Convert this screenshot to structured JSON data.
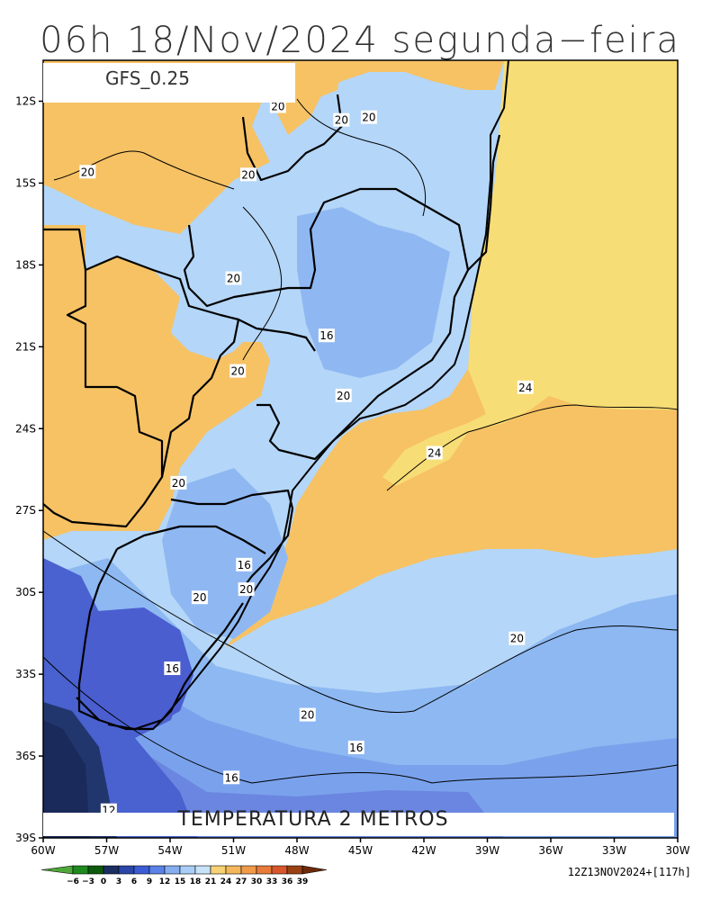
{
  "title": "06h 18/Nov/2024 segunda−feira",
  "model_label": "GFS_0.25",
  "footer_label": "TEMPERATURA 2 METROS",
  "run_info": "12Z13NOV2024+[117h]",
  "y_ticks": [
    "12S",
    "15S",
    "18S",
    "21S",
    "24S",
    "27S",
    "30S",
    "33S",
    "36S",
    "39S"
  ],
  "x_ticks": [
    "60W",
    "57W",
    "54W",
    "51W",
    "48W",
    "45W",
    "42W",
    "39W",
    "36W",
    "33W",
    "30W"
  ],
  "contour_labels": [
    {
      "text": "20",
      "lon": -48.9,
      "lat": -12.2
    },
    {
      "text": "20",
      "lon": -45.9,
      "lat": -12.7
    },
    {
      "text": "20",
      "lon": -44.6,
      "lat": -12.6
    },
    {
      "text": "20",
      "lon": -57.9,
      "lat": -14.6
    },
    {
      "text": "20",
      "lon": -50.3,
      "lat": -14.7
    },
    {
      "text": "20",
      "lon": -51.0,
      "lat": -18.5
    },
    {
      "text": "16",
      "lon": -46.6,
      "lat": -20.6
    },
    {
      "text": "20",
      "lon": -50.8,
      "lat": -21.9
    },
    {
      "text": "20",
      "lon": -45.8,
      "lat": -22.8
    },
    {
      "text": "24",
      "lon": -37.2,
      "lat": -22.5
    },
    {
      "text": "24",
      "lon": -41.5,
      "lat": -24.9
    },
    {
      "text": "20",
      "lon": -53.6,
      "lat": -26.0
    },
    {
      "text": "16",
      "lon": -50.5,
      "lat": -29.0
    },
    {
      "text": "20",
      "lon": -52.6,
      "lat": -30.2
    },
    {
      "text": "20",
      "lon": -50.4,
      "lat": -29.9
    },
    {
      "text": "20",
      "lon": -37.6,
      "lat": -31.7
    },
    {
      "text": "16",
      "lon": -53.9,
      "lat": -32.8
    },
    {
      "text": "20",
      "lon": -47.5,
      "lat": -34.5
    },
    {
      "text": "16",
      "lon": -45.2,
      "lat": -35.7
    },
    {
      "text": "16",
      "lon": -51.1,
      "lat": -36.8
    },
    {
      "text": "12",
      "lon": -56.9,
      "lat": -38.0
    }
  ],
  "colorbar": {
    "labels": [
      "−6",
      "−3",
      "0",
      "3",
      "6",
      "9",
      "12",
      "15",
      "18",
      "21",
      "24",
      "27",
      "30",
      "33",
      "36",
      "39"
    ],
    "colors": [
      "#4fa83a",
      "#1f8a1f",
      "#0c5a0c",
      "#1a2f60",
      "#2a46a8",
      "#3c5cd6",
      "#5a82e8",
      "#84aef0",
      "#a9cdf6",
      "#c8e2f8",
      "#f7d274",
      "#f4b85c",
      "#f19a4a",
      "#e87a3a",
      "#d8562c",
      "#9a4214",
      "#6b2a08"
    ]
  },
  "colors": {
    "warm": "#f7c163",
    "warm_light": "#f7dd75",
    "cool_1": "#b7d8f8",
    "cool_2": "#8db8f2",
    "cool_3": "#6a92e6",
    "cool_4": "#4a6ad6",
    "cool_5": "#2a3f8a",
    "cool_6": "#1c2f66"
  }
}
